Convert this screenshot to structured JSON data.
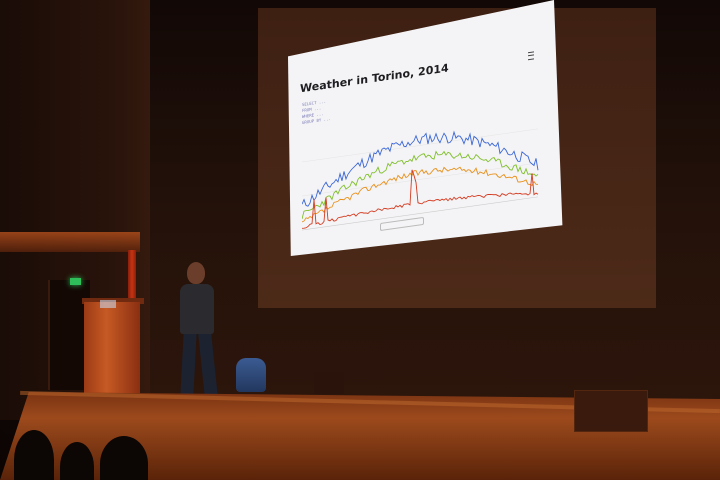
{
  "slide": {
    "title": "Weather in Torino, 2014",
    "code_lines": [
      "SELECT ...",
      "FROM ...",
      "WHERE ...",
      "GROUP BY ..."
    ]
  },
  "colors": {
    "blue_series": "#3a66d6",
    "green_series": "#7fbf2a",
    "orange_series": "#e8901c",
    "red_series": "#d43a20",
    "exit_sign": "#2fbf5a"
  },
  "icons": [
    "menu-icon"
  ]
}
